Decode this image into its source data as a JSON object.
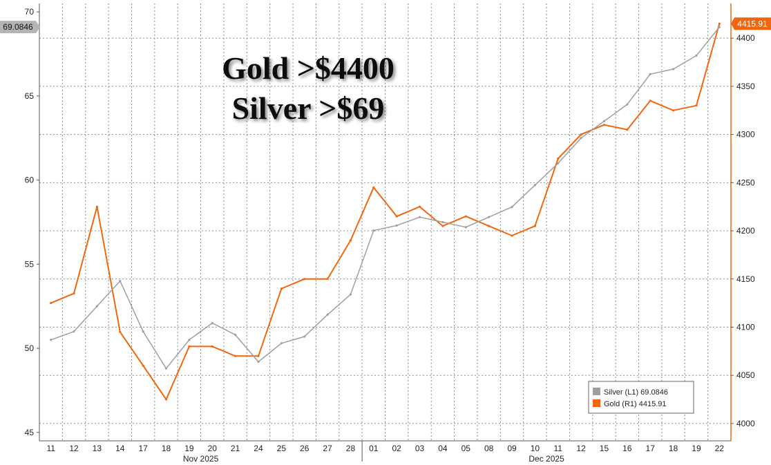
{
  "chart_data": {
    "type": "line",
    "headline": [
      "Gold >$4400",
      "Silver >$69"
    ],
    "x_ticks": [
      "11",
      "12",
      "13",
      "14",
      "17",
      "18",
      "19",
      "20",
      "21",
      "24",
      "25",
      "26",
      "27",
      "28",
      "01",
      "02",
      "03",
      "04",
      "05",
      "08",
      "09",
      "10",
      "11",
      "12",
      "15",
      "16",
      "17",
      "18",
      "19",
      "22"
    ],
    "month_labels": [
      "Nov 2025",
      "Dec 2025"
    ],
    "y_left": {
      "ticks": [
        45,
        50,
        55,
        60,
        65,
        70
      ],
      "range": [
        44.5,
        70.5
      ]
    },
    "y_right": {
      "ticks": [
        4000,
        4050,
        4100,
        4150,
        4200,
        4250,
        4300,
        4350,
        4400
      ],
      "range": [
        3982,
        4436
      ]
    },
    "grid": true,
    "legend_position": "bottom-right",
    "series": [
      {
        "name": "Silver",
        "axis": "L1",
        "color": "#9e9e9e",
        "last": "69.0846",
        "values": [
          50.5,
          51.0,
          52.5,
          54.0,
          51.0,
          48.8,
          50.5,
          51.5,
          50.8,
          49.2,
          50.3,
          50.7,
          52.0,
          53.2,
          57.0,
          57.3,
          57.8,
          57.5,
          57.2,
          57.8,
          58.4,
          59.7,
          61.0,
          62.5,
          63.5,
          64.5,
          66.3,
          66.6,
          67.4,
          69.1
        ]
      },
      {
        "name": "Gold",
        "axis": "R1",
        "color": "#f0670f",
        "last": "4415.91",
        "values": [
          4125,
          4135,
          4225,
          4095,
          4060,
          4025,
          4080,
          4080,
          4070,
          4070,
          4140,
          4150,
          4150,
          4190,
          4245,
          4215,
          4225,
          4205,
          4215,
          4205,
          4195,
          4205,
          4275,
          4300,
          4310,
          4305,
          4335,
          4325,
          4330,
          4415
        ]
      }
    ]
  }
}
